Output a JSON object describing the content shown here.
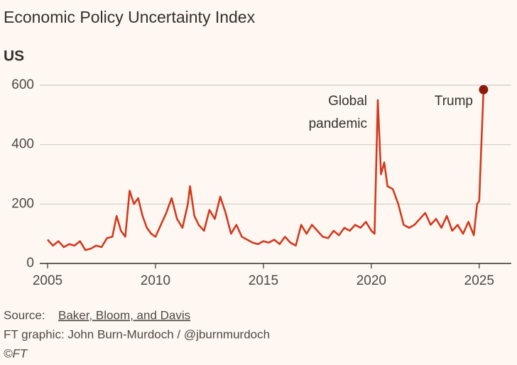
{
  "chart_data": {
    "type": "line",
    "title": "Economic Policy Uncertainty Index",
    "subtitle": "US",
    "xlim": [
      2005,
      2025.5
    ],
    "xticks": [
      2005,
      2010,
      2015,
      2020,
      2025
    ],
    "ylim": [
      0,
      600
    ],
    "yticks": [
      0,
      200,
      400,
      600
    ],
    "grid": true,
    "x": [
      2005.0,
      2005.25,
      2005.5,
      2005.75,
      2006.0,
      2006.25,
      2006.5,
      2006.75,
      2007.0,
      2007.25,
      2007.5,
      2007.75,
      2008.0,
      2008.2,
      2008.4,
      2008.6,
      2008.8,
      2009.0,
      2009.2,
      2009.4,
      2009.6,
      2009.8,
      2010.0,
      2010.25,
      2010.5,
      2010.75,
      2011.0,
      2011.25,
      2011.5,
      2011.6,
      2011.8,
      2012.0,
      2012.25,
      2012.5,
      2012.75,
      2013.0,
      2013.25,
      2013.5,
      2013.75,
      2014.0,
      2014.25,
      2014.5,
      2014.75,
      2015.0,
      2015.25,
      2015.5,
      2015.75,
      2016.0,
      2016.25,
      2016.5,
      2016.75,
      2017.0,
      2017.25,
      2017.5,
      2017.75,
      2018.0,
      2018.25,
      2018.5,
      2018.75,
      2019.0,
      2019.25,
      2019.5,
      2019.75,
      2020.0,
      2020.15,
      2020.3,
      2020.45,
      2020.6,
      2020.75,
      2021.0,
      2021.25,
      2021.5,
      2021.75,
      2022.0,
      2022.25,
      2022.5,
      2022.75,
      2023.0,
      2023.25,
      2023.5,
      2023.75,
      2024.0,
      2024.25,
      2024.5,
      2024.75,
      2024.9,
      2025.0,
      2025.1,
      2025.2
    ],
    "series": [
      {
        "name": "US",
        "color": "#d23a1e",
        "marker_color": "#8b1a0c",
        "values": [
          80,
          60,
          75,
          55,
          65,
          60,
          75,
          45,
          50,
          60,
          55,
          85,
          90,
          160,
          110,
          90,
          245,
          200,
          220,
          160,
          120,
          100,
          90,
          130,
          170,
          220,
          150,
          120,
          200,
          260,
          160,
          130,
          110,
          180,
          150,
          225,
          170,
          100,
          130,
          90,
          80,
          70,
          65,
          75,
          70,
          80,
          65,
          90,
          70,
          60,
          130,
          100,
          130,
          110,
          90,
          85,
          110,
          95,
          120,
          110,
          130,
          120,
          140,
          110,
          100,
          550,
          300,
          340,
          260,
          250,
          200,
          130,
          120,
          130,
          150,
          170,
          130,
          150,
          120,
          160,
          110,
          130,
          100,
          140,
          95,
          200,
          210,
          400,
          585
        ]
      }
    ],
    "annotations": [
      {
        "lines": [
          "Global",
          "pandemic"
        ]
      },
      {
        "lines": [
          "Trump"
        ]
      }
    ],
    "source_label": "Source:",
    "source": "Baker, Bloom, and Davis",
    "credit": "FT graphic: John Burn-Murdoch / @jburnmurdoch",
    "copyright": "©FT"
  }
}
